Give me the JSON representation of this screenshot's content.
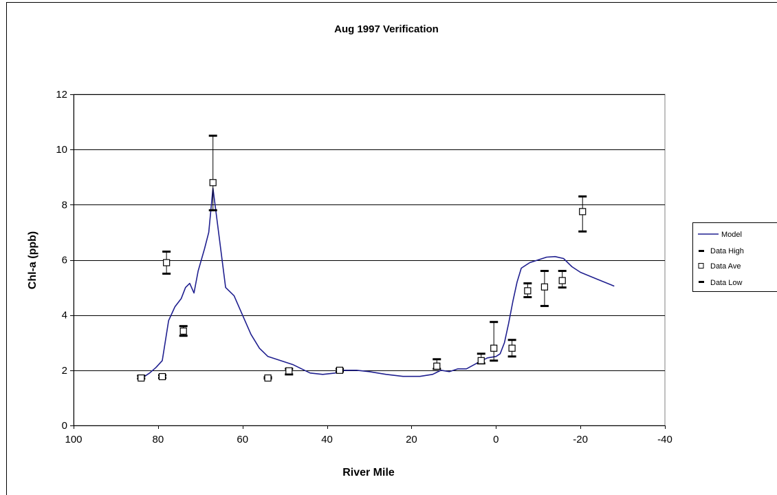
{
  "chart_data": {
    "type": "line",
    "title": "Aug 1997 Verification",
    "xlabel": "River Mile",
    "ylabel": "Chl-a (ppb)",
    "xlim": [
      100,
      -40
    ],
    "ylim": [
      0,
      12
    ],
    "x_ticks": [
      "100",
      "80",
      "60",
      "40",
      "20",
      "0",
      "-20",
      "-40"
    ],
    "x_tick_values": [
      100,
      80,
      60,
      40,
      20,
      0,
      -20,
      -40
    ],
    "y_ticks": [
      "0",
      "2",
      "4",
      "6",
      "8",
      "10",
      "12"
    ],
    "y_tick_values": [
      0,
      2,
      4,
      6,
      8,
      10,
      12
    ],
    "grid": "horizontal",
    "legend_position": "right",
    "colors": {
      "model": "#1f1f8f",
      "data": "#000000",
      "grid": "#000000"
    },
    "model": {
      "name": "Model",
      "x": [
        83.5,
        82,
        80.5,
        79,
        77.5,
        76,
        74.5,
        73.5,
        72.5,
        71.5,
        70.5,
        69,
        68,
        67,
        65.5,
        64,
        62,
        60,
        58,
        56,
        54,
        52,
        48,
        44,
        41,
        38,
        36,
        33,
        30,
        26,
        22,
        18,
        15,
        13,
        11,
        9,
        7,
        4,
        2,
        0,
        -1,
        -2,
        -3,
        -4,
        -5,
        -6,
        -8,
        -10,
        -12,
        -14,
        -16,
        -17,
        -18,
        -20,
        -24,
        -28
      ],
      "y": [
        1.75,
        1.9,
        2.1,
        2.35,
        3.8,
        4.3,
        4.6,
        5.0,
        5.15,
        4.8,
        5.6,
        6.4,
        7.0,
        8.6,
        6.8,
        5.0,
        4.7,
        4.0,
        3.3,
        2.8,
        2.5,
        2.4,
        2.2,
        1.9,
        1.85,
        1.9,
        2.0,
        2.0,
        1.95,
        1.85,
        1.78,
        1.78,
        1.85,
        2.0,
        1.95,
        2.05,
        2.05,
        2.3,
        2.45,
        2.5,
        2.6,
        3.0,
        3.7,
        4.5,
        5.2,
        5.7,
        5.9,
        6.0,
        6.1,
        6.12,
        6.05,
        5.9,
        5.75,
        5.55,
        5.3,
        5.05
      ]
    },
    "data_series": [
      {
        "name": "Data High"
      },
      {
        "name": "Data Ave"
      },
      {
        "name": "Data Low"
      }
    ],
    "data": [
      {
        "x": 84,
        "high": 1.8,
        "ave": 1.72,
        "low": 1.7
      },
      {
        "x": 79,
        "high": 1.82,
        "ave": 1.77,
        "low": 1.72
      },
      {
        "x": 78,
        "high": 6.3,
        "ave": 5.9,
        "low": 5.5
      },
      {
        "x": 74,
        "high": 3.6,
        "ave": 3.42,
        "low": 3.25
      },
      {
        "x": 67,
        "high": 10.5,
        "ave": 8.8,
        "low": 7.8
      },
      {
        "x": 54,
        "high": 1.75,
        "ave": 1.72,
        "low": 1.7
      },
      {
        "x": 49,
        "high": 2.05,
        "ave": 1.98,
        "low": 1.85
      },
      {
        "x": 37,
        "high": 2.05,
        "ave": 2.0,
        "low": 1.95
      },
      {
        "x": 14,
        "high": 2.4,
        "ave": 2.15,
        "low": 2.05
      },
      {
        "x": 3.5,
        "high": 2.6,
        "ave": 2.35,
        "low": 2.25
      },
      {
        "x": 0.5,
        "high": 3.75,
        "ave": 2.8,
        "low": 2.35
      },
      {
        "x": -3.8,
        "high": 3.1,
        "ave": 2.8,
        "low": 2.5
      },
      {
        "x": -7.5,
        "high": 5.15,
        "ave": 4.88,
        "low": 4.65
      },
      {
        "x": -11.5,
        "high": 5.6,
        "ave": 5.02,
        "low": 4.33
      },
      {
        "x": -15.7,
        "high": 5.6,
        "ave": 5.25,
        "low": 5.0
      },
      {
        "x": -20.5,
        "high": 8.3,
        "ave": 7.75,
        "low": 7.03
      }
    ],
    "legend": [
      "Model",
      "Data High",
      "Data Ave",
      "Data Low"
    ]
  }
}
